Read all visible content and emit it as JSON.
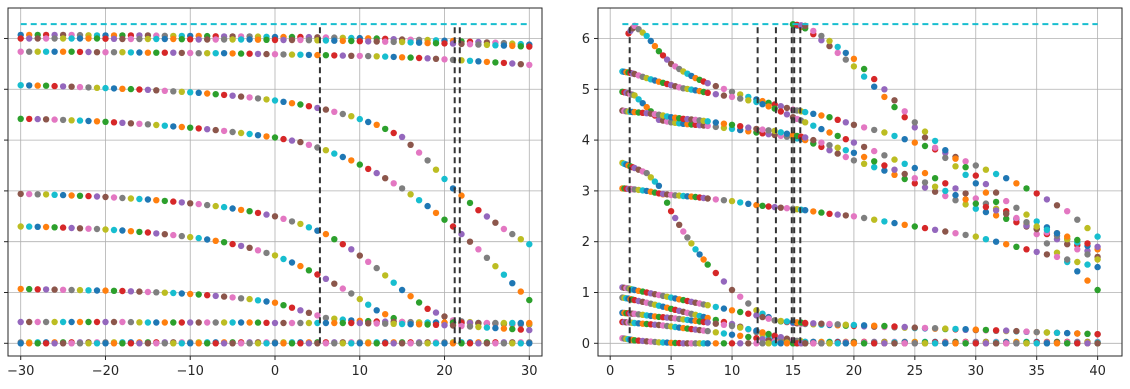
{
  "chart_data": [
    {
      "type": "scatter",
      "title": "",
      "xlabel": "",
      "ylabel": "",
      "xlim": [
        -31.5,
        31.5
      ],
      "ylim": [
        -0.25,
        6.6
      ],
      "grid": true,
      "x_ticks": [
        -30,
        -20,
        -10,
        0,
        10,
        20,
        30
      ],
      "x_tick_labels": [
        "−30",
        "−20",
        "−10",
        "0",
        "10",
        "20",
        "30"
      ],
      "y_ticks": [
        0,
        1,
        2,
        3,
        4,
        5,
        6
      ],
      "y_tick_labels": [],
      "reference_line": {
        "y": 6.283,
        "x_range": [
          -30,
          30
        ],
        "color": "#17becf",
        "style": "dashed"
      },
      "vertical_markers": {
        "x": [
          5.3,
          21.2,
          21.8
        ],
        "y_range": [
          0,
          6.283
        ],
        "color": "#333333",
        "style": "dashed"
      },
      "point_palette": [
        "#1f77b4",
        "#ff7f0e",
        "#2ca02c",
        "#d62728",
        "#9467bd",
        "#8c564b",
        "#e377c2",
        "#7f7f7f",
        "#bcbd22",
        "#17becf"
      ],
      "x": [
        -30,
        -27,
        -24,
        -21,
        -18,
        -15,
        -12,
        -9,
        -6,
        -3,
        0,
        3,
        6,
        9,
        12,
        15,
        18,
        21,
        24,
        27,
        30
      ],
      "series": [
        {
          "y": [
            6.07,
            6.07,
            6.07,
            6.06,
            6.06,
            6.06,
            6.05,
            6.05,
            6.04,
            6.04,
            6.03,
            6.03,
            6.02,
            6.01,
            6.0,
            5.98,
            5.97,
            5.95,
            5.93,
            5.91,
            5.88
          ]
        },
        {
          "y": [
            6.0,
            6.0,
            6.0,
            6.0,
            5.99,
            5.99,
            5.99,
            5.98,
            5.98,
            5.98,
            5.97,
            5.97,
            5.96,
            5.95,
            5.94,
            5.93,
            5.91,
            5.9,
            5.88,
            5.86,
            5.84
          ]
        },
        {
          "y": [
            5.74,
            5.74,
            5.74,
            5.73,
            5.73,
            5.72,
            5.72,
            5.71,
            5.71,
            5.7,
            5.69,
            5.68,
            5.67,
            5.66,
            5.65,
            5.63,
            5.61,
            5.58,
            5.55,
            5.52,
            5.48
          ]
        },
        {
          "y": [
            5.08,
            5.07,
            5.05,
            5.03,
            5.01,
            4.99,
            4.96,
            4.93,
            4.89,
            4.84,
            4.78,
            4.7,
            4.6,
            4.47,
            4.3,
            4.06,
            3.6,
            3.05,
            2.62,
            2.25,
            1.95
          ]
        },
        {
          "y": [
            4.42,
            4.41,
            4.39,
            4.37,
            4.34,
            4.31,
            4.27,
            4.23,
            4.18,
            4.12,
            4.05,
            3.96,
            3.8,
            3.6,
            3.35,
            3.05,
            2.7,
            2.3,
            1.85,
            1.35,
            0.85
          ]
        },
        {
          "y": [
            2.94,
            2.93,
            2.91,
            2.89,
            2.86,
            2.83,
            2.79,
            2.74,
            2.68,
            2.6,
            2.5,
            2.35,
            2.15,
            1.85,
            1.48,
            1.05,
            0.68,
            0.45,
            0.4,
            0.38,
            0.37
          ]
        },
        {
          "y": [
            2.3,
            2.29,
            2.27,
            2.25,
            2.22,
            2.18,
            2.13,
            2.07,
            1.99,
            1.88,
            1.73,
            1.52,
            1.27,
            0.98,
            0.65,
            0.42,
            0.4,
            0.4,
            0.39,
            0.39,
            0.38
          ]
        },
        {
          "y": [
            1.07,
            1.06,
            1.05,
            1.04,
            1.03,
            1.01,
            0.99,
            0.96,
            0.92,
            0.87,
            0.8,
            0.65,
            0.5,
            0.45,
            0.43,
            0.42,
            0.41,
            0.41,
            0.4,
            0.4,
            0.4
          ]
        },
        {
          "y": [
            0.42,
            0.42,
            0.42,
            0.42,
            0.42,
            0.41,
            0.41,
            0.41,
            0.41,
            0.41,
            0.4,
            0.4,
            0.4,
            0.4,
            0.39,
            0.38,
            0.37,
            0.35,
            0.32,
            0.29,
            0.26
          ]
        },
        {
          "y": [
            0.02,
            0.02,
            0.02,
            0.02,
            0.02,
            0.02,
            0.02,
            0.02,
            0.02,
            0.02,
            0.02,
            0.02,
            0.02,
            0.02,
            0.02,
            0.02,
            0.02,
            0.02,
            0.02,
            0.02,
            0.02
          ]
        },
        {
          "y": [
            0.0,
            0.0,
            0.0,
            0.0,
            0.0,
            0.0,
            0.0,
            0.0,
            0.0,
            0.0,
            0.0,
            0.0,
            0.0,
            0.0,
            0.0,
            0.0,
            0.0,
            0.0,
            0.0,
            0.0,
            0.0
          ]
        }
      ]
    },
    {
      "type": "scatter",
      "title": "",
      "xlabel": "",
      "ylabel": "",
      "xlim": [
        -1.0,
        42.0
      ],
      "ylim": [
        -0.25,
        6.6
      ],
      "grid": true,
      "x_ticks": [
        0,
        5,
        10,
        15,
        20,
        25,
        30,
        35,
        40
      ],
      "x_tick_labels": [
        "0",
        "5",
        "10",
        "15",
        "20",
        "25",
        "30",
        "35",
        "40"
      ],
      "y_ticks": [
        0,
        1,
        2,
        3,
        4,
        5,
        6
      ],
      "y_tick_labels": [
        "0",
        "1",
        "2",
        "3",
        "4",
        "5",
        "6"
      ],
      "reference_line": {
        "y": 6.283,
        "x_range": [
          1,
          40
        ],
        "color": "#17becf",
        "style": "dashed"
      },
      "vertical_markers": {
        "x": [
          1.6,
          12.1,
          13.6,
          14.9,
          15.1,
          15.6
        ],
        "y_range": [
          0,
          6.283
        ],
        "color": "#333333",
        "style": "dashed"
      },
      "point_palette": [
        "#1f77b4",
        "#ff7f0e",
        "#2ca02c",
        "#d62728",
        "#9467bd",
        "#8c564b",
        "#e377c2",
        "#7f7f7f",
        "#bcbd22",
        "#17becf"
      ],
      "x": [
        1,
        1.5,
        2,
        3,
        4,
        5,
        6,
        7,
        8,
        10,
        12,
        13.5,
        15,
        16,
        18,
        20,
        22.5,
        25,
        27.5,
        30,
        32.5,
        35,
        37.5,
        40
      ],
      "series": [
        {
          "y": [
            null,
            6.1,
            6.25,
            6.05,
            5.75,
            5.5,
            5.35,
            5.22,
            5.12,
            4.95,
            4.8,
            4.7,
            4.6,
            4.55,
            4.45,
            4.3,
            4.15,
            3.95,
            3.75,
            3.5,
            3.25,
            2.95,
            2.6,
            2.1
          ]
        },
        {
          "y": [
            null,
            null,
            null,
            null,
            null,
            null,
            null,
            null,
            null,
            null,
            null,
            null,
            6.28,
            6.2,
            5.85,
            5.45,
            4.85,
            4.25,
            3.65,
            3.15,
            2.6,
            2.15,
            1.6,
            1.05
          ]
        },
        {
          "y": [
            null,
            null,
            null,
            null,
            null,
            null,
            null,
            null,
            null,
            null,
            null,
            null,
            6.28,
            6.25,
            5.95,
            5.6,
            5.0,
            4.35,
            3.8,
            3.3,
            2.8,
            2.4,
            2.05,
            1.7
          ]
        },
        {
          "y": [
            5.35,
            5.33,
            5.3,
            5.22,
            5.15,
            5.08,
            5.02,
            4.98,
            4.93,
            4.85,
            4.75,
            4.62,
            4.45,
            4.35,
            4.15,
            3.95,
            3.7,
            3.45,
            3.15,
            2.85,
            2.55,
            2.25,
            1.95,
            1.65
          ]
        },
        {
          "y": [
            4.95,
            4.92,
            4.88,
            4.65,
            4.4,
            4.35,
            4.32,
            4.3,
            4.28,
            4.22,
            4.15,
            4.1,
            4.05,
            4.0,
            3.8,
            3.6,
            3.4,
            3.15,
            2.9,
            2.65,
            2.45,
            2.25,
            2.05,
            1.85
          ]
        },
        {
          "y": [
            4.58,
            4.56,
            4.55,
            4.53,
            4.5,
            4.45,
            4.42,
            4.4,
            4.37,
            4.3,
            4.22,
            4.18,
            4.1,
            4.05,
            3.9,
            3.75,
            3.5,
            3.25,
            3.0,
            2.75,
            2.55,
            2.3,
            2.1,
            1.9
          ]
        },
        {
          "y": [
            3.55,
            3.5,
            3.45,
            3.35,
            3.1,
            2.6,
            2.2,
            1.85,
            1.55,
            1.05,
            0.65,
            0.45,
            0.4,
            0.38,
            0.36,
            0.34,
            0.32,
            0.3,
            0.28,
            0.26,
            0.24,
            0.22,
            0.2,
            0.18
          ]
        },
        {
          "y": [
            3.05,
            3.04,
            3.03,
            3.0,
            2.95,
            2.92,
            2.9,
            2.88,
            2.85,
            2.8,
            2.72,
            2.68,
            2.65,
            2.62,
            2.55,
            2.5,
            2.4,
            2.3,
            2.2,
            2.1,
            1.95,
            1.8,
            1.65,
            1.5
          ]
        },
        {
          "y": [
            1.1,
            1.08,
            1.05,
            1.0,
            0.95,
            0.9,
            0.85,
            0.8,
            0.75,
            0.65,
            0.55,
            0.45,
            0.42,
            0.4,
            0.38,
            0.36,
            0.34,
            0.31,
            0.29,
            0.27,
            0.25,
            0.22,
            0.2,
            0.18
          ]
        },
        {
          "y": [
            0.9,
            0.88,
            0.85,
            0.8,
            0.74,
            0.68,
            0.62,
            0.56,
            0.5,
            0.38,
            0.22,
            0.08,
            0.04,
            0.03,
            0.03,
            0.03,
            0.03,
            0.03,
            0.03,
            0.03,
            0.03,
            0.03,
            0.03,
            0.03
          ]
        },
        {
          "y": [
            0.6,
            0.59,
            0.58,
            0.55,
            0.52,
            0.5,
            0.47,
            0.44,
            0.41,
            0.34,
            0.25,
            0.15,
            0.06,
            0.03,
            0.02,
            0.02,
            0.02,
            0.02,
            0.02,
            0.02,
            0.02,
            0.02,
            0.02,
            0.02
          ]
        },
        {
          "y": [
            0.42,
            0.41,
            0.4,
            0.38,
            0.36,
            0.33,
            0.3,
            0.27,
            0.24,
            0.17,
            0.1,
            0.04,
            0.0,
            0.0,
            0.0,
            0.0,
            0.0,
            0.0,
            0.0,
            0.0,
            0.0,
            0.0,
            0.0,
            0.0
          ]
        },
        {
          "y": [
            0.1,
            0.08,
            0.06,
            0.04,
            0.02,
            0.01,
            0.0,
            0.0,
            0.0,
            0.0,
            0.0,
            0.0,
            0.0,
            0.0,
            0.0,
            0.0,
            0.0,
            0.0,
            0.0,
            0.0,
            0.0,
            0.0,
            0.0,
            0.0
          ]
        }
      ]
    }
  ]
}
